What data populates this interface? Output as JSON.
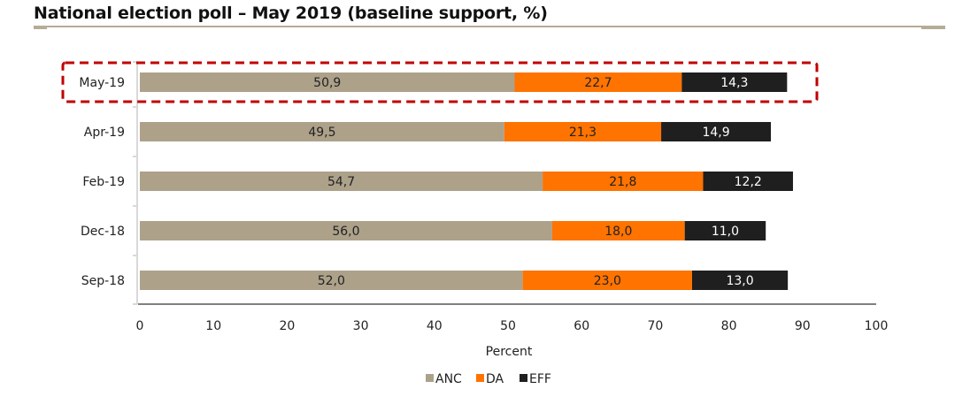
{
  "header": {
    "title": "National election poll – May 2019 (baseline support, %)"
  },
  "chart_data": {
    "type": "bar",
    "orientation": "horizontal",
    "stacked": true,
    "title": "National election poll – May 2019 (baseline support, %)",
    "xlabel": "Percent",
    "ylabel": "",
    "xlim": [
      0,
      100
    ],
    "xticks": [
      0,
      10,
      20,
      30,
      40,
      50,
      60,
      70,
      80,
      90,
      100
    ],
    "grid": false,
    "legend_position": "bottom-center",
    "decimal_separator": ",",
    "categories": [
      "May-19",
      "Apr-19",
      "Feb-19",
      "Dec-18",
      "Sep-18"
    ],
    "series": [
      {
        "name": "ANC",
        "color": "#ada18a",
        "label_color": "#222222",
        "values": [
          50.9,
          49.5,
          54.7,
          56.0,
          52.0
        ]
      },
      {
        "name": "DA",
        "color": "#ff7300",
        "label_color": "#222222",
        "values": [
          22.7,
          21.3,
          21.8,
          18.0,
          23.0
        ]
      },
      {
        "name": "EFF",
        "color": "#1f1f1f",
        "label_color": "#ffffff",
        "values": [
          14.3,
          14.9,
          12.2,
          11.0,
          13.0
        ]
      }
    ],
    "highlight": {
      "category": "May-19",
      "style": "dashed-box",
      "color": "#c00000"
    }
  }
}
